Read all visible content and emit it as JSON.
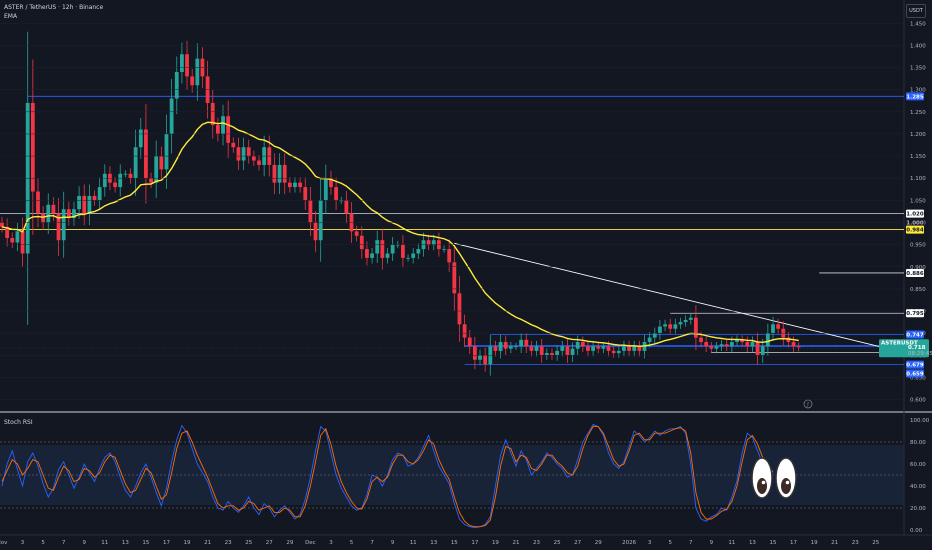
{
  "header": {
    "symbol_line": "ASTER / TetherUS · 12h · Binance",
    "indicator": "EMA",
    "currency": "USDT"
  },
  "rsi_panel": {
    "title": "Stoch RSI"
  },
  "colors": {
    "background": "#131722",
    "up": "#26a69a",
    "down": "#f23645",
    "ema": "#ffeb3b",
    "k_line": "#2962ff",
    "d_line": "#ff6d00",
    "support_blue": "#2962ff",
    "resistance_white": "#d1d4dc",
    "yellow_level": "#ffeb3b",
    "rsi_band": "#1e2d4a"
  },
  "chart_data": [
    {
      "type": "candlestick",
      "title": "ASTER / TetherUS · 12h · Binance",
      "ylim": [
        0.59,
        1.48
      ],
      "y_ticks": [
        "1.450",
        "1.400",
        "1.350",
        "1.300",
        "1.250",
        "1.200",
        "1.150",
        "1.100",
        "1.050",
        "1.000",
        "0.950",
        "0.900",
        "0.850",
        "0.800",
        "0.750",
        "0.700",
        "0.650",
        "0.600"
      ],
      "x_ticks": [
        {
          "label": "Nov",
          "i": 0
        },
        {
          "label": "3",
          "i": 4
        },
        {
          "label": "5",
          "i": 8
        },
        {
          "label": "7",
          "i": 12
        },
        {
          "label": "9",
          "i": 16
        },
        {
          "label": "11",
          "i": 20
        },
        {
          "label": "13",
          "i": 24
        },
        {
          "label": "15",
          "i": 28
        },
        {
          "label": "17",
          "i": 32
        },
        {
          "label": "19",
          "i": 36
        },
        {
          "label": "21",
          "i": 40
        },
        {
          "label": "23",
          "i": 44
        },
        {
          "label": "25",
          "i": 48
        },
        {
          "label": "27",
          "i": 52
        },
        {
          "label": "29",
          "i": 56
        },
        {
          "label": "Dec",
          "i": 60
        },
        {
          "label": "3",
          "i": 64
        },
        {
          "label": "5",
          "i": 68
        },
        {
          "label": "7",
          "i": 72
        },
        {
          "label": "9",
          "i": 76
        },
        {
          "label": "11",
          "i": 80
        },
        {
          "label": "13",
          "i": 84
        },
        {
          "label": "15",
          "i": 88
        },
        {
          "label": "17",
          "i": 92
        },
        {
          "label": "19",
          "i": 96
        },
        {
          "label": "21",
          "i": 100
        },
        {
          "label": "23",
          "i": 104
        },
        {
          "label": "25",
          "i": 108
        },
        {
          "label": "27",
          "i": 112
        },
        {
          "label": "29",
          "i": 116
        },
        {
          "label": "2026",
          "i": 122
        },
        {
          "label": "3",
          "i": 126
        },
        {
          "label": "5",
          "i": 130
        },
        {
          "label": "7",
          "i": 134
        },
        {
          "label": "9",
          "i": 138
        },
        {
          "label": "11",
          "i": 142
        },
        {
          "label": "13",
          "i": 146
        },
        {
          "label": "15",
          "i": 150
        },
        {
          "label": "17",
          "i": 154
        },
        {
          "label": "19",
          "i": 158
        },
        {
          "label": "21",
          "i": 162
        },
        {
          "label": "23",
          "i": 166
        },
        {
          "label": "25",
          "i": 170
        }
      ],
      "close": [
        0.99,
        0.965,
        0.955,
        0.98,
        0.93,
        1.27,
        1.07,
        1.02,
        1.0,
        1.04,
        1.02,
        0.96,
        1.03,
        1.01,
        1.03,
        1.06,
        1.02,
        1.06,
        1.05,
        1.08,
        1.11,
        1.09,
        1.08,
        1.11,
        1.11,
        1.1,
        1.17,
        1.21,
        1.1,
        1.09,
        1.15,
        1.12,
        1.2,
        1.28,
        1.34,
        1.38,
        1.33,
        1.31,
        1.37,
        1.33,
        1.27,
        1.22,
        1.2,
        1.24,
        1.18,
        1.17,
        1.14,
        1.17,
        1.15,
        1.14,
        1.13,
        1.17,
        1.13,
        1.09,
        1.13,
        1.09,
        1.08,
        1.09,
        1.08,
        1.05,
        1.0,
        0.96,
        1.05,
        1.1,
        1.08,
        1.05,
        1.05,
        1.02,
        0.98,
        0.97,
        0.94,
        0.92,
        0.93,
        0.96,
        0.92,
        0.93,
        0.95,
        0.95,
        0.92,
        0.92,
        0.93,
        0.94,
        0.96,
        0.95,
        0.96,
        0.94,
        0.94,
        0.91,
        0.84,
        0.77,
        0.74,
        0.72,
        0.69,
        0.7,
        0.68,
        0.72,
        0.71,
        0.73,
        0.715,
        0.72,
        0.72,
        0.735,
        0.72,
        0.71,
        0.72,
        0.7,
        0.705,
        0.7,
        0.71,
        0.72,
        0.7,
        0.715,
        0.73,
        0.72,
        0.71,
        0.72,
        0.715,
        0.72,
        0.71,
        0.705,
        0.71,
        0.72,
        0.71,
        0.72,
        0.71,
        0.73,
        0.74,
        0.75,
        0.765,
        0.77,
        0.76,
        0.77,
        0.775,
        0.78,
        0.785,
        0.74,
        0.73,
        0.72,
        0.715,
        0.72,
        0.725,
        0.72,
        0.73,
        0.735,
        0.73,
        0.72,
        0.73,
        0.7,
        0.72,
        0.75,
        0.77,
        0.76,
        0.74,
        0.73,
        0.72,
        0.718
      ],
      "support_zone": [
        0.721,
        0.706,
        0.679,
        0.659
      ],
      "resistance_levels": [
        1.285,
        1.02,
        0.984,
        0.886,
        0.795,
        0.747
      ],
      "level_tags": [
        "1.285",
        "1.020",
        "1.000",
        "0.984",
        "0.886",
        "0.795",
        "0.747",
        "0.721",
        "0.706",
        "0.679",
        "0.659"
      ],
      "last_price_tag": {
        "symbol": "ASTERUSDT",
        "price": "0.718",
        "countdown": "08:29:45"
      },
      "ema_label": "EMA"
    },
    {
      "type": "line",
      "title": "Stoch RSI",
      "ylim": [
        0,
        100
      ],
      "y_ticks": [
        "100.00",
        "80.00",
        "60.00",
        "40.00",
        "20.00",
        "0.00"
      ],
      "bands": [
        20,
        50,
        80
      ],
      "series": [
        {
          "name": "",
          "color": "#2962ff",
          "values": [
            40,
            60,
            72,
            55,
            40,
            62,
            70,
            58,
            42,
            30,
            38,
            55,
            62,
            50,
            38,
            48,
            60,
            52,
            44,
            56,
            66,
            70,
            62,
            48,
            36,
            30,
            40,
            52,
            60,
            48,
            34,
            22,
            38,
            62,
            82,
            95,
            88,
            74,
            60,
            52,
            44,
            30,
            20,
            18,
            26,
            20,
            16,
            22,
            30,
            20,
            14,
            24,
            20,
            12,
            18,
            22,
            16,
            10,
            14,
            28,
            48,
            72,
            94,
            90,
            70,
            50,
            38,
            30,
            22,
            18,
            20,
            32,
            50,
            48,
            40,
            50,
            64,
            70,
            68,
            58,
            60,
            66,
            76,
            86,
            72,
            58,
            50,
            42,
            24,
            10,
            5,
            3,
            2,
            3,
            5,
            12,
            40,
            68,
            82,
            70,
            58,
            72,
            64,
            50,
            56,
            62,
            70,
            66,
            60,
            56,
            48,
            50,
            64,
            80,
            88,
            96,
            94,
            86,
            70,
            60,
            56,
            62,
            76,
            90,
            86,
            80,
            84,
            90,
            86,
            90,
            92,
            92,
            94,
            88,
            60,
            20,
            10,
            8,
            12,
            14,
            20,
            18,
            30,
            45,
            70,
            88,
            84,
            72,
            60,
            55,
            52
          ]
        },
        {
          "name": "",
          "color": "#ff6d00",
          "values": [
            44,
            54,
            64,
            60,
            50,
            56,
            64,
            62,
            50,
            38,
            36,
            48,
            58,
            54,
            44,
            46,
            56,
            54,
            48,
            52,
            62,
            68,
            66,
            54,
            42,
            34,
            36,
            46,
            56,
            52,
            40,
            28,
            32,
            52,
            74,
            88,
            90,
            80,
            68,
            58,
            48,
            36,
            24,
            20,
            22,
            22,
            18,
            20,
            26,
            24,
            18,
            20,
            22,
            16,
            16,
            20,
            18,
            12,
            12,
            22,
            40,
            62,
            86,
            92,
            78,
            58,
            44,
            34,
            26,
            20,
            19,
            28,
            44,
            48,
            44,
            48,
            60,
            68,
            68,
            62,
            60,
            64,
            72,
            82,
            78,
            64,
            54,
            46,
            30,
            16,
            8,
            4,
            3,
            3,
            4,
            9,
            30,
            58,
            76,
            74,
            62,
            68,
            66,
            56,
            54,
            60,
            68,
            68,
            62,
            58,
            52,
            50,
            58,
            74,
            86,
            94,
            94,
            88,
            76,
            64,
            58,
            60,
            72,
            86,
            88,
            82,
            82,
            88,
            88,
            88,
            90,
            92,
            93,
            90,
            70,
            34,
            16,
            10,
            10,
            13,
            17,
            19,
            26,
            40,
            62,
            82,
            86,
            78,
            66,
            58,
            53
          ]
        }
      ]
    }
  ]
}
